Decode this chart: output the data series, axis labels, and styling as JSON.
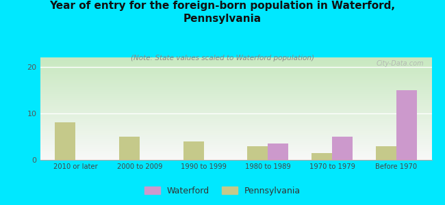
{
  "title": "Year of entry for the foreign-born population in Waterford,\nPennsylvania",
  "subtitle": "(Note: State values scaled to Waterford population)",
  "categories": [
    "2010 or later",
    "2000 to 2009",
    "1990 to 1999",
    "1980 to 1989",
    "1970 to 1979",
    "Before 1970"
  ],
  "waterford_values": [
    0,
    0,
    0,
    3.5,
    5.0,
    15.0
  ],
  "pennsylvania_values": [
    8.0,
    5.0,
    4.0,
    3.0,
    1.5,
    3.0
  ],
  "waterford_color": "#cc99cc",
  "pennsylvania_color": "#c5c98a",
  "background_color": "#00e8ff",
  "plot_bg_top_left": "#c8e8c0",
  "plot_bg_top_right": "#e0ece0",
  "plot_bg_bottom": "#f8f8f8",
  "title_color": "#111111",
  "subtitle_color": "#888888",
  "ylabel_ticks": [
    0,
    10,
    20
  ],
  "ylim": [
    0,
    22
  ],
  "bar_width": 0.32,
  "waterford_label": "Waterford",
  "pennsylvania_label": "Pennsylvania",
  "watermark": "City-Data.com"
}
